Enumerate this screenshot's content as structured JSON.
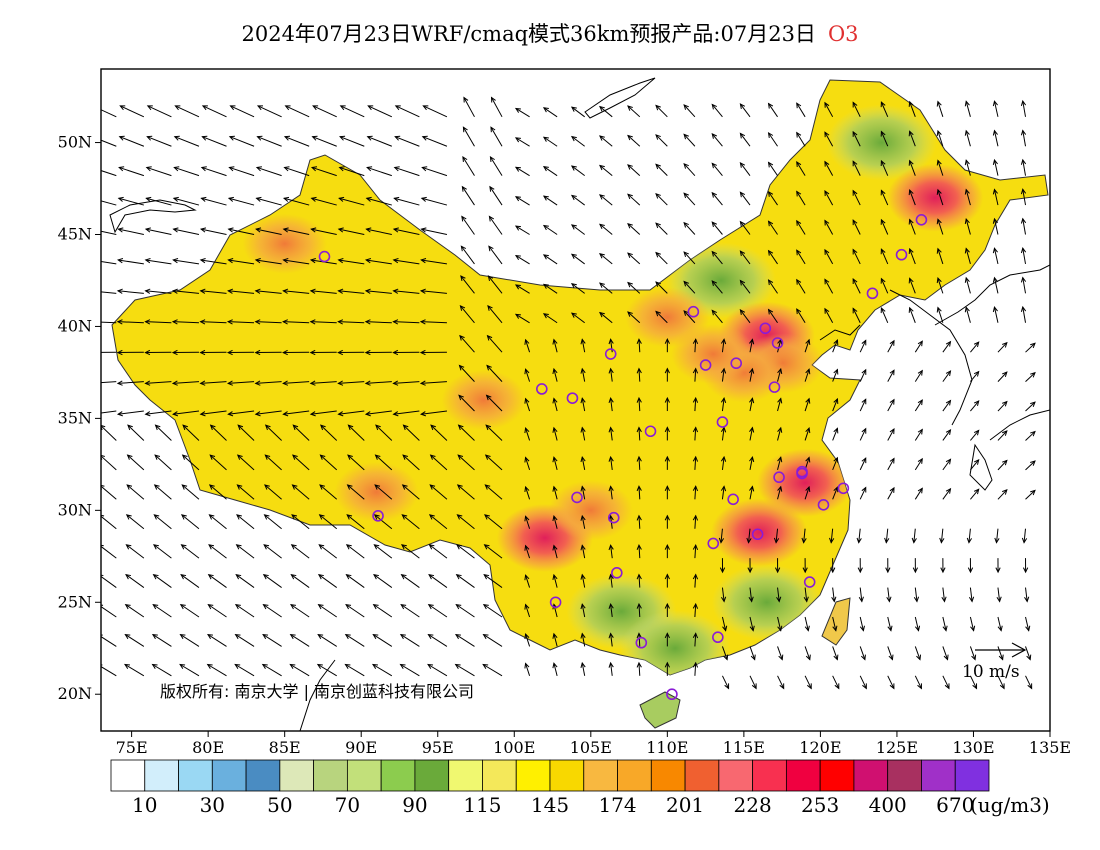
{
  "title": {
    "text": "2024年07月23日WRF/cmaq模式36km预报产品:07月23日",
    "species": "O3",
    "species_color": "#e03030"
  },
  "map": {
    "lon_range": [
      73,
      135
    ],
    "lat_range": [
      18,
      54
    ],
    "lon_ticks": [
      {
        "value": 75,
        "label": "75E"
      },
      {
        "value": 80,
        "label": "80E"
      },
      {
        "value": 85,
        "label": "85E"
      },
      {
        "value": 90,
        "label": "90E"
      },
      {
        "value": 95,
        "label": "95E"
      },
      {
        "value": 100,
        "label": "100E"
      },
      {
        "value": 105,
        "label": "105E"
      },
      {
        "value": 110,
        "label": "110E"
      },
      {
        "value": 115,
        "label": "115E"
      },
      {
        "value": 120,
        "label": "120E"
      },
      {
        "value": 125,
        "label": "125E"
      },
      {
        "value": 130,
        "label": "130E"
      },
      {
        "value": 135,
        "label": "135E"
      }
    ],
    "lat_ticks": [
      {
        "value": 20,
        "label": "20N"
      },
      {
        "value": 25,
        "label": "25N"
      },
      {
        "value": 30,
        "label": "30N"
      },
      {
        "value": 35,
        "label": "35N"
      },
      {
        "value": 40,
        "label": "40N"
      },
      {
        "value": 45,
        "label": "45N"
      },
      {
        "value": 50,
        "label": "50N"
      }
    ],
    "copyright": "版权所有: 南京大学 | 南京创蓝科技有限公司",
    "wind_reference": {
      "label": "10 m/s",
      "speed_ms": 10
    },
    "base_color": "#f6dd10",
    "hotspots": [
      {
        "lon": 116.5,
        "lat": 39.5,
        "level": "high"
      },
      {
        "lon": 117.5,
        "lat": 38.0,
        "level": "mid"
      },
      {
        "lon": 115.0,
        "lat": 37.5,
        "level": "mid"
      },
      {
        "lon": 113.0,
        "lat": 38.5,
        "level": "mid"
      },
      {
        "lon": 119.0,
        "lat": 31.5,
        "level": "high"
      },
      {
        "lon": 116.0,
        "lat": 28.8,
        "level": "high"
      },
      {
        "lon": 102.0,
        "lat": 28.5,
        "level": "high"
      },
      {
        "lon": 127.5,
        "lat": 47.0,
        "level": "high"
      },
      {
        "lon": 98.0,
        "lat": 36.0,
        "level": "mid"
      },
      {
        "lon": 91.0,
        "lat": 31.0,
        "level": "mid"
      },
      {
        "lon": 105.0,
        "lat": 30.0,
        "level": "mid"
      },
      {
        "lon": 85.0,
        "lat": 44.5,
        "level": "mid"
      },
      {
        "lon": 110.0,
        "lat": 40.5,
        "level": "mid"
      }
    ],
    "green_zones": [
      {
        "lon": 124.0,
        "lat": 50.0
      },
      {
        "lon": 107.0,
        "lat": 24.5
      },
      {
        "lon": 110.5,
        "lat": 22.5
      },
      {
        "lon": 113.5,
        "lat": 42.5
      },
      {
        "lon": 116.5,
        "lat": 25.0
      }
    ],
    "stations": [
      {
        "lon": 116.4,
        "lat": 39.9
      },
      {
        "lon": 117.2,
        "lat": 39.1
      },
      {
        "lon": 114.5,
        "lat": 38.0
      },
      {
        "lon": 112.5,
        "lat": 37.9
      },
      {
        "lon": 111.7,
        "lat": 40.8
      },
      {
        "lon": 123.4,
        "lat": 41.8
      },
      {
        "lon": 125.3,
        "lat": 43.9
      },
      {
        "lon": 126.6,
        "lat": 45.8
      },
      {
        "lon": 117.0,
        "lat": 36.7
      },
      {
        "lon": 113.6,
        "lat": 34.8
      },
      {
        "lon": 118.8,
        "lat": 32.0
      },
      {
        "lon": 121.5,
        "lat": 31.2
      },
      {
        "lon": 120.2,
        "lat": 30.3
      },
      {
        "lon": 117.3,
        "lat": 31.8
      },
      {
        "lon": 115.9,
        "lat": 28.7
      },
      {
        "lon": 114.3,
        "lat": 30.6
      },
      {
        "lon": 113.0,
        "lat": 28.2
      },
      {
        "lon": 119.3,
        "lat": 26.1
      },
      {
        "lon": 113.3,
        "lat": 23.1
      },
      {
        "lon": 108.3,
        "lat": 22.8
      },
      {
        "lon": 110.3,
        "lat": 20.0
      },
      {
        "lon": 106.7,
        "lat": 26.6
      },
      {
        "lon": 102.7,
        "lat": 25.0
      },
      {
        "lon": 104.1,
        "lat": 30.7
      },
      {
        "lon": 106.5,
        "lat": 29.6
      },
      {
        "lon": 108.9,
        "lat": 34.3
      },
      {
        "lon": 103.8,
        "lat": 36.1
      },
      {
        "lon": 101.8,
        "lat": 36.6
      },
      {
        "lon": 106.3,
        "lat": 38.5
      },
      {
        "lon": 87.6,
        "lat": 43.8
      },
      {
        "lon": 91.1,
        "lat": 29.7
      },
      {
        "lon": 118.8,
        "lat": 32.1
      }
    ]
  },
  "colorbar": {
    "colors": [
      "#ffffff",
      "#d2eefb",
      "#9ad8f3",
      "#6ab0de",
      "#4a8cc2",
      "#dde8b8",
      "#b8d47e",
      "#c2e07a",
      "#8ccc4e",
      "#6aaa3a",
      "#f0f870",
      "#f4e85a",
      "#fff000",
      "#f8d800",
      "#f8b840",
      "#f8a828",
      "#f88800",
      "#f06030",
      "#f86870",
      "#f83050",
      "#f00040",
      "#ff0000",
      "#d01070",
      "#a83060",
      "#a030c8",
      "#8030e0"
    ],
    "labels": [
      "10",
      "30",
      "50",
      "70",
      "90",
      "115",
      "145",
      "174",
      "201",
      "228",
      "253",
      "400",
      "670"
    ],
    "unit": "(ug/m3)"
  }
}
